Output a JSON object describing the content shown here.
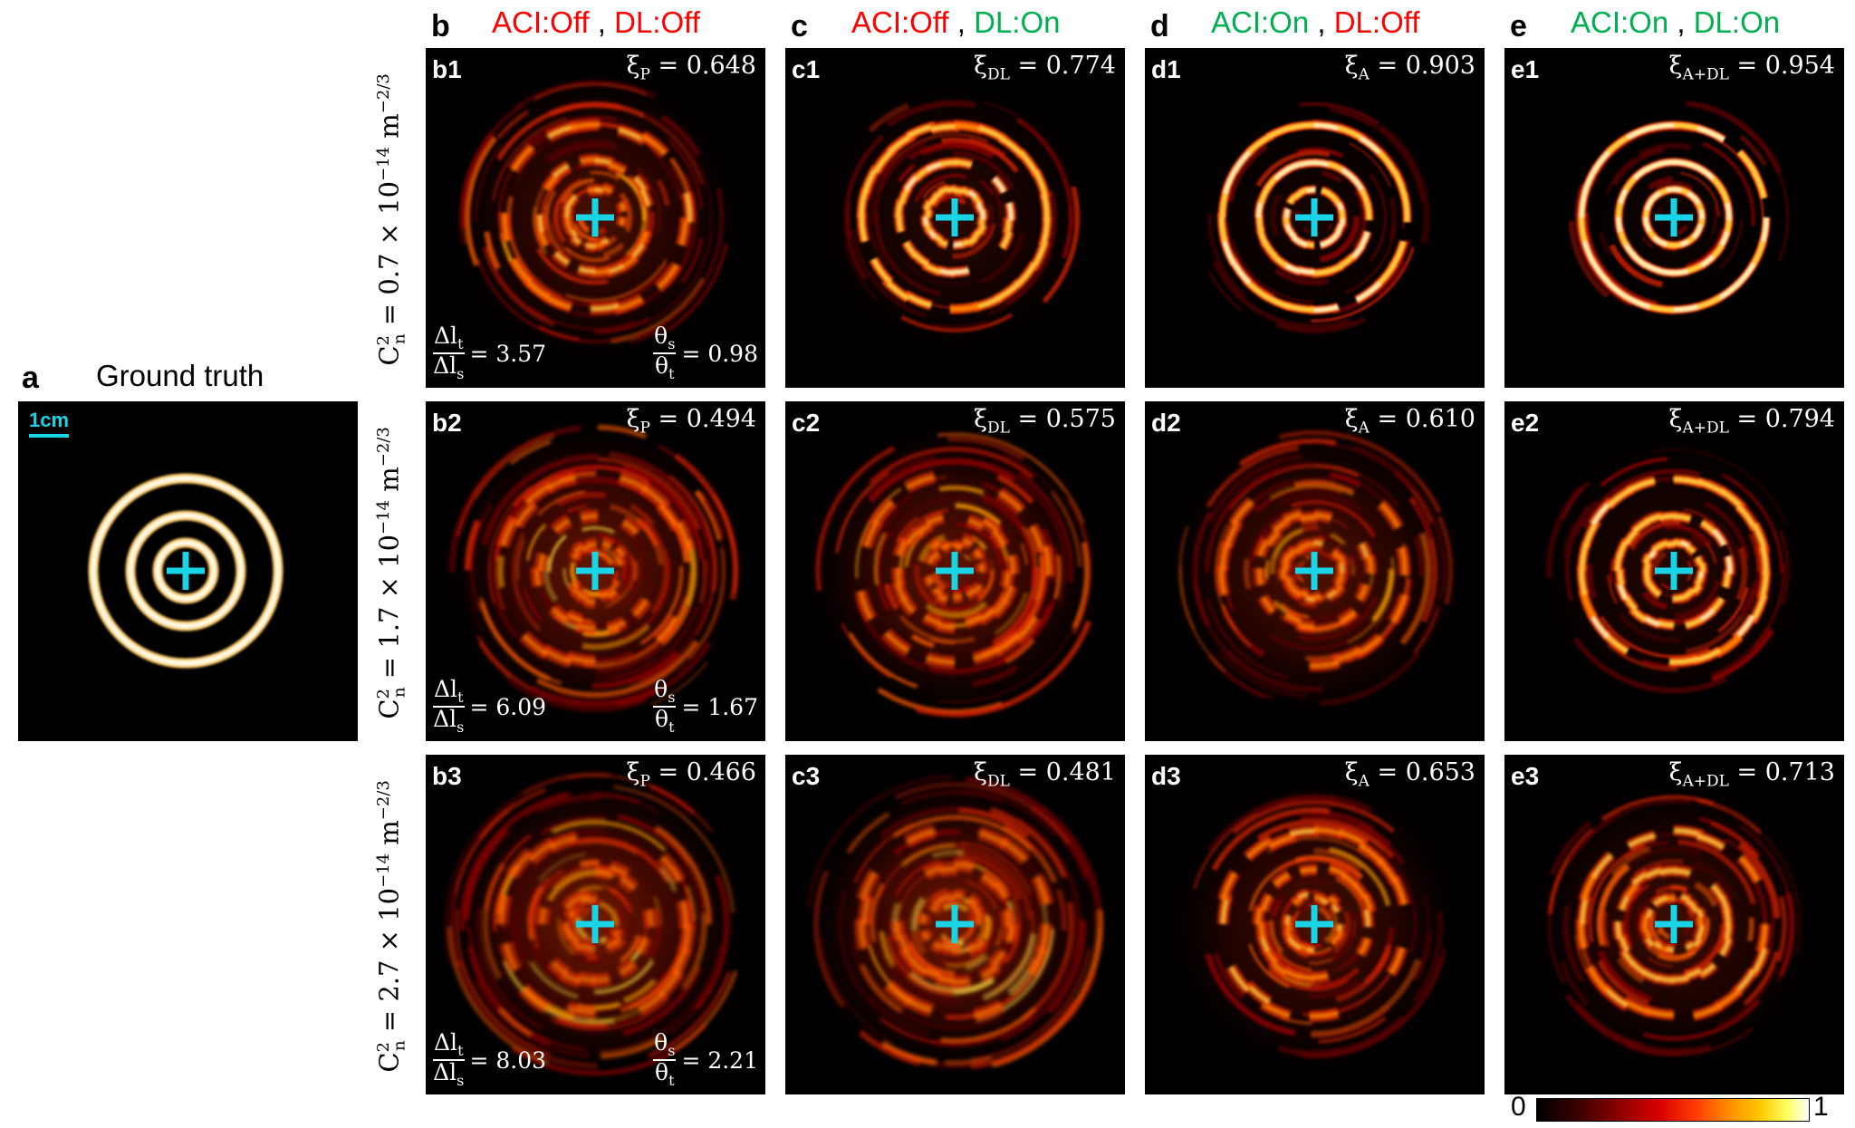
{
  "panel_a": {
    "letter": "a",
    "title": "Ground truth",
    "scale": "1cm"
  },
  "columns": [
    {
      "letter": "b",
      "aci": "ACI:Off",
      "aci_color": "#ff0000",
      "dl": "DL:Off",
      "dl_color": "#ff0000",
      "sep": " , "
    },
    {
      "letter": "c",
      "aci": "ACI:Off",
      "aci_color": "#ff0000",
      "dl": "DL:On",
      "dl_color": "#00b050",
      "sep": " , "
    },
    {
      "letter": "d",
      "aci": "ACI:On",
      "aci_color": "#00b050",
      "dl": "DL:Off",
      "dl_color": "#ff0000",
      "sep": " , "
    },
    {
      "letter": "e",
      "aci": "ACI:On",
      "aci_color": "#00b050",
      "dl": "DL:On",
      "dl_color": "#00b050",
      "sep": " , "
    }
  ],
  "rows": [
    {
      "cn2": "0.7 × 10",
      "exp": "−14",
      "unit": "m",
      "unit_exp": "−2/3",
      "prefix": "C",
      "prefix_sup": "2",
      "prefix_sub": "n",
      "eq": " = "
    },
    {
      "cn2": "1.7 × 10",
      "exp": "−14",
      "unit": "m",
      "unit_exp": "−2/3",
      "prefix": "C",
      "prefix_sup": "2",
      "prefix_sub": "n",
      "eq": " = "
    },
    {
      "cn2": "2.7 × 10",
      "exp": "−14",
      "unit": "m",
      "unit_exp": "−2/3",
      "prefix": "C",
      "prefix_sup": "2",
      "prefix_sub": "n",
      "eq": " = "
    }
  ],
  "panels": [
    [
      {
        "id": "b1",
        "xi_sym": "ξ",
        "xi_sub": "P",
        "xi_val": " = 0.648",
        "dl_ratio": "= 3.57",
        "theta_ratio": "= 0.98"
      },
      {
        "id": "c1",
        "xi_sym": "ξ",
        "xi_sub": "DL",
        "xi_val": " = 0.774"
      },
      {
        "id": "d1",
        "xi_sym": "ξ",
        "xi_sub": "A",
        "xi_val": " = 0.903"
      },
      {
        "id": "e1",
        "xi_sym": "ξ",
        "xi_sub": "A+DL",
        "xi_val": " = 0.954"
      }
    ],
    [
      {
        "id": "b2",
        "xi_sym": "ξ",
        "xi_sub": "P",
        "xi_val": " = 0.494",
        "dl_ratio": "= 6.09",
        "theta_ratio": "= 1.67"
      },
      {
        "id": "c2",
        "xi_sym": "ξ",
        "xi_sub": "DL",
        "xi_val": " = 0.575"
      },
      {
        "id": "d2",
        "xi_sym": "ξ",
        "xi_sub": "A",
        "xi_val": " = 0.610"
      },
      {
        "id": "e2",
        "xi_sym": "ξ",
        "xi_sub": "A+DL",
        "xi_val": " = 0.794"
      }
    ],
    [
      {
        "id": "b3",
        "xi_sym": "ξ",
        "xi_sub": "P",
        "xi_val": " = 0.466",
        "dl_ratio": "= 8.03",
        "theta_ratio": "= 2.21"
      },
      {
        "id": "c3",
        "xi_sym": "ξ",
        "xi_sub": "DL",
        "xi_val": " = 0.481"
      },
      {
        "id": "d3",
        "xi_sym": "ξ",
        "xi_sub": "A",
        "xi_val": " = 0.653"
      },
      {
        "id": "e3",
        "xi_sym": "ξ",
        "xi_sub": "A+DL",
        "xi_val": " = 0.713"
      }
    ]
  ],
  "frac_labels": {
    "dl_num": "Δl",
    "dl_num_sub": "t",
    "dl_den": "Δl",
    "dl_den_sub": "s",
    "th_num": "θ",
    "th_num_sub": "s",
    "th_den": "θ",
    "th_den_sub": "t"
  },
  "colorbar": {
    "min": "0",
    "max": "1",
    "colormap": "hot"
  },
  "colors": {
    "crosshair": "#19d4e6",
    "background": "#000000"
  }
}
